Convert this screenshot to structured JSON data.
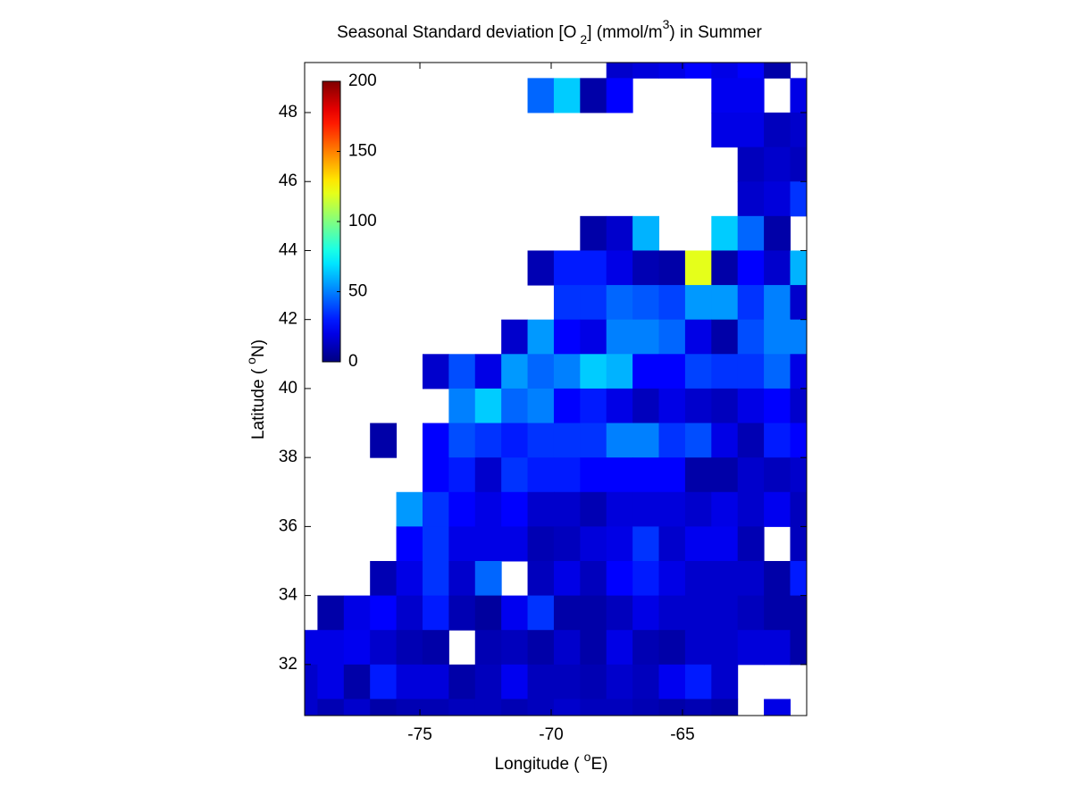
{
  "chart_data": {
    "type": "heatmap",
    "title": [
      "Seasonal Standard deviation [O",
      "2",
      "] (mmol/m",
      "3",
      ") in  Summer"
    ],
    "xlabel": [
      "Longitude (",
      "o",
      "E)"
    ],
    "ylabel": [
      "Latitude (",
      "o",
      "N)"
    ],
    "x": [
      -79.4,
      -78.4,
      -77.4,
      -76.4,
      -75.4,
      -74.4,
      -73.4,
      -72.4,
      -71.4,
      -70.4,
      -69.4,
      -68.4,
      -67.4,
      -66.4,
      -65.4,
      -64.4,
      -63.4,
      -62.4,
      -61.4,
      -60.4
    ],
    "y": [
      49.5,
      48.5,
      47.5,
      46.5,
      45.5,
      44.5,
      43.5,
      42.5,
      41.5,
      40.5,
      39.5,
      38.5,
      37.5,
      36.5,
      35.5,
      34.5,
      33.5,
      32.5,
      31.5,
      30.5
    ],
    "xlim": [
      -79.39,
      -60.27
    ],
    "ylim": [
      30.52,
      49.45
    ],
    "xticks": [
      -75,
      -70,
      -65
    ],
    "yticks": [
      32,
      34,
      36,
      38,
      40,
      42,
      44,
      46,
      48
    ],
    "colormap": "jet",
    "clim": [
      0,
      200
    ],
    "cticks": [
      0,
      50,
      100,
      150,
      200
    ],
    "z": [
      [
        null,
        null,
        null,
        null,
        null,
        null,
        null,
        null,
        null,
        null,
        null,
        null,
        15,
        18,
        20,
        25,
        20,
        25,
        8,
        null
      ],
      [
        null,
        null,
        null,
        null,
        null,
        null,
        null,
        null,
        null,
        45,
        65,
        8,
        25,
        null,
        null,
        null,
        22,
        22,
        null,
        20
      ],
      [
        null,
        null,
        null,
        null,
        null,
        null,
        null,
        null,
        null,
        null,
        null,
        null,
        null,
        null,
        null,
        null,
        20,
        20,
        12,
        15
      ],
      [
        null,
        null,
        null,
        null,
        null,
        null,
        null,
        null,
        null,
        null,
        null,
        null,
        null,
        null,
        null,
        null,
        null,
        12,
        15,
        12
      ],
      [
        null,
        null,
        null,
        null,
        null,
        null,
        null,
        null,
        null,
        null,
        null,
        null,
        null,
        null,
        null,
        null,
        null,
        15,
        18,
        35
      ],
      [
        null,
        null,
        null,
        null,
        null,
        null,
        null,
        null,
        null,
        null,
        null,
        8,
        15,
        60,
        null,
        null,
        65,
        45,
        8,
        null
      ],
      [
        null,
        null,
        null,
        null,
        null,
        null,
        null,
        null,
        null,
        10,
        30,
        30,
        20,
        10,
        8,
        120,
        8,
        25,
        15,
        60
      ],
      [
        null,
        null,
        null,
        null,
        null,
        null,
        null,
        null,
        null,
        null,
        35,
        35,
        45,
        42,
        38,
        55,
        55,
        35,
        50,
        15
      ],
      [
        null,
        null,
        null,
        null,
        null,
        null,
        null,
        null,
        15,
        55,
        25,
        20,
        50,
        50,
        45,
        20,
        8,
        40,
        50,
        50
      ],
      [
        null,
        null,
        null,
        null,
        null,
        15,
        40,
        20,
        55,
        45,
        50,
        65,
        60,
        25,
        25,
        38,
        35,
        35,
        45,
        20
      ],
      [
        null,
        null,
        null,
        null,
        null,
        null,
        50,
        65,
        45,
        50,
        25,
        30,
        20,
        12,
        20,
        15,
        12,
        20,
        25,
        15
      ],
      [
        null,
        null,
        null,
        8,
        null,
        25,
        40,
        35,
        30,
        35,
        35,
        35,
        50,
        50,
        35,
        40,
        20,
        10,
        30,
        25
      ],
      [
        null,
        null,
        null,
        null,
        null,
        25,
        30,
        15,
        35,
        30,
        30,
        25,
        25,
        25,
        25,
        8,
        8,
        15,
        12,
        15
      ],
      [
        null,
        null,
        null,
        null,
        55,
        35,
        25,
        20,
        25,
        15,
        15,
        10,
        18,
        18,
        18,
        15,
        20,
        15,
        22,
        12
      ],
      [
        null,
        null,
        null,
        null,
        25,
        35,
        20,
        20,
        20,
        10,
        12,
        18,
        20,
        35,
        15,
        22,
        22,
        10,
        null,
        12
      ],
      [
        null,
        null,
        null,
        10,
        20,
        35,
        15,
        45,
        null,
        12,
        20,
        12,
        25,
        30,
        20,
        15,
        15,
        15,
        8,
        30
      ],
      [
        null,
        8,
        20,
        25,
        15,
        30,
        10,
        6,
        22,
        35,
        8,
        8,
        12,
        20,
        15,
        15,
        15,
        12,
        8,
        8
      ],
      [
        20,
        20,
        22,
        15,
        10,
        8,
        null,
        10,
        12,
        8,
        15,
        8,
        20,
        10,
        8,
        15,
        15,
        18,
        18,
        8
      ],
      [
        15,
        20,
        8,
        30,
        18,
        18,
        8,
        12,
        22,
        12,
        12,
        10,
        15,
        12,
        22,
        30,
        15,
        null,
        null,
        null
      ],
      [
        15,
        10,
        15,
        8,
        10,
        10,
        12,
        12,
        10,
        12,
        15,
        12,
        12,
        10,
        8,
        10,
        8,
        null,
        20,
        null
      ]
    ]
  }
}
